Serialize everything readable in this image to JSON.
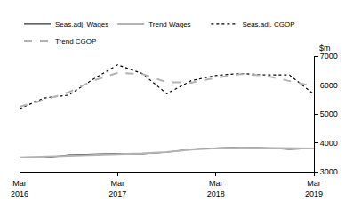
{
  "chart_data": {
    "type": "line",
    "ylabel": "$m",
    "categories": [
      "Mar 2016",
      null,
      null,
      null,
      "Mar 2017",
      null,
      null,
      null,
      "Mar 2018",
      null,
      null,
      null,
      "Mar 2019"
    ],
    "series": [
      {
        "name": "Seas.adj. Wages",
        "color": "#333333",
        "line_style": "solid",
        "values": [
          3480,
          3490,
          3580,
          3600,
          3630,
          3620,
          3670,
          3780,
          3810,
          3840,
          3820,
          3770,
          3800
        ]
      },
      {
        "name": "Trend Wages",
        "color": "#b3b3b3",
        "line_style": "solid",
        "values": [
          3500,
          3530,
          3570,
          3600,
          3610,
          3630,
          3680,
          3760,
          3810,
          3830,
          3820,
          3800,
          3800
        ]
      },
      {
        "name": "Seas.adj. CGOP",
        "color": "#000000",
        "line_style": "dot",
        "values": [
          5180,
          5550,
          5650,
          6200,
          6700,
          6400,
          5700,
          6150,
          6330,
          6400,
          6350,
          6350,
          5680
        ]
      },
      {
        "name": "Trend CGOP",
        "color": "#b3b3b3",
        "line_style": "dash",
        "values": [
          5250,
          5480,
          5750,
          6150,
          6420,
          6380,
          6100,
          6080,
          6250,
          6380,
          6330,
          6150,
          5950
        ]
      }
    ],
    "ylim": [
      3000,
      7000
    ],
    "yticks": [
      3000,
      4000,
      5000,
      6000,
      7000
    ],
    "grid": false,
    "legend": "top"
  }
}
